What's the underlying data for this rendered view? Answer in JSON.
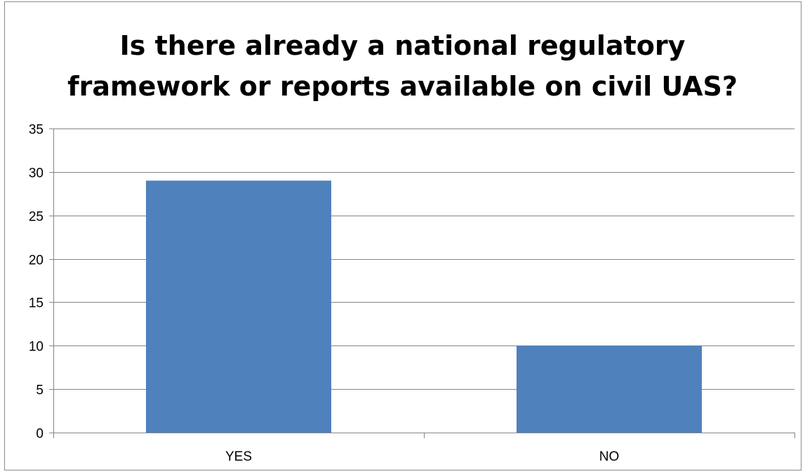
{
  "chart_data": {
    "type": "bar",
    "title_lines": [
      "Is there already a national regulatory",
      "framework or reports available on civil UAS?"
    ],
    "categories": [
      "YES",
      "NO"
    ],
    "values": [
      29,
      10
    ],
    "ylim": [
      0,
      35
    ],
    "yticks": [
      0,
      5,
      10,
      15,
      20,
      25,
      30,
      35
    ],
    "grid": true,
    "legend": "none",
    "bar_color": "#4F81BD",
    "grid_color": "#868686"
  }
}
